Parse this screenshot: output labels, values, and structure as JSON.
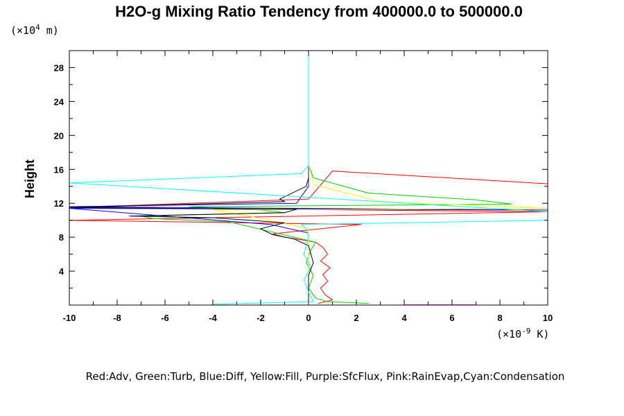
{
  "chart_data": {
    "type": "line",
    "title": "H2O-g Mixing Ratio Tendency from 400000.0 to 500000.0",
    "ylabel": "Height",
    "yunit_prefix": "(×10",
    "yunit_exp": "4",
    "yunit_suffix": " m)",
    "xunit_prefix": "(×10",
    "xunit_exp": "-9",
    "xunit_suffix": " K)",
    "legend_text": "Red:Adv, Green:Turb, Blue:Diff, Yellow:Fill, Purple:SfcFlux, Pink:RainEvap,Cyan:Condensation",
    "xlim": [
      -10,
      10
    ],
    "ylim": [
      0,
      30
    ],
    "xticks": [
      "-10",
      "-8",
      "-6",
      "-4",
      "-2",
      "0",
      "2",
      "4",
      "6",
      "8",
      "10"
    ],
    "yticks": [
      "4",
      "8",
      "12",
      "16",
      "20",
      "24",
      "28"
    ],
    "series": [
      {
        "color": "#ff0000",
        "points": [
          [
            0.4,
            0.2
          ],
          [
            1.0,
            0.6
          ],
          [
            0.7,
            1.2
          ],
          [
            0.5,
            2.0
          ],
          [
            0.8,
            2.8
          ],
          [
            0.6,
            3.6
          ],
          [
            0.9,
            4.4
          ],
          [
            0.5,
            5.2
          ],
          [
            0.8,
            6.0
          ],
          [
            0.6,
            6.8
          ],
          [
            0.3,
            7.4
          ],
          [
            -0.3,
            7.7
          ],
          [
            -1.0,
            8.0
          ],
          [
            -1.5,
            8.4
          ],
          [
            2.2,
            9.5
          ],
          [
            -10,
            10.0
          ],
          [
            10,
            11.0
          ],
          [
            -10,
            11.5
          ],
          [
            0,
            12.5
          ],
          [
            1.0,
            15.8
          ],
          [
            10,
            14.3
          ]
        ]
      },
      {
        "color": "#00cc00",
        "points": [
          [
            2.5,
            0.2
          ],
          [
            0.8,
            0.4
          ],
          [
            0.3,
            0.8
          ],
          [
            0.0,
            2.0
          ],
          [
            0.2,
            3.5
          ],
          [
            -0.1,
            5.0
          ],
          [
            0.1,
            6.5
          ],
          [
            0.3,
            7.4
          ],
          [
            -0.6,
            8.0
          ],
          [
            -1.8,
            8.8
          ],
          [
            -3.3,
            9.8
          ],
          [
            -6.5,
            10.2
          ],
          [
            -7.0,
            10.5
          ],
          [
            -1.0,
            10.9
          ],
          [
            -2.0,
            11.2
          ],
          [
            -5.0,
            11.6
          ],
          [
            8.5,
            11.9
          ],
          [
            7.0,
            12.4
          ],
          [
            2.5,
            13.2
          ],
          [
            0.2,
            15.0
          ],
          [
            0.0,
            16.5
          ]
        ]
      },
      {
        "color": "#0000ff",
        "points": [
          [
            0.0,
            0.1
          ],
          [
            0.0,
            1.0
          ],
          [
            0.0,
            5.0
          ],
          [
            0.0,
            8.5
          ],
          [
            -1.6,
            9.5
          ],
          [
            -10,
            11.4
          ],
          [
            10,
            11.2
          ],
          [
            -10,
            11.6
          ],
          [
            -0.5,
            12.0
          ],
          [
            0.0,
            14.0
          ],
          [
            0.0,
            16.5
          ]
        ]
      },
      {
        "color": "#ffff00",
        "points": [
          [
            0.0,
            0.1
          ],
          [
            0.0,
            5.0
          ],
          [
            0.0,
            9.0
          ],
          [
            -2.5,
            10.5
          ],
          [
            -4.0,
            11.2
          ],
          [
            10,
            11.4
          ],
          [
            3.0,
            12.2
          ],
          [
            0.2,
            14.2
          ],
          [
            0.0,
            16.5
          ]
        ]
      },
      {
        "color": "#000000",
        "points": [
          [
            0.0,
            0.2
          ],
          [
            0.0,
            3.5
          ],
          [
            0.2,
            5.0
          ],
          [
            0.0,
            7.0
          ],
          [
            -0.6,
            7.8
          ],
          [
            -1.5,
            8.3
          ],
          [
            -2.0,
            9.0
          ],
          [
            -1.0,
            9.7
          ],
          [
            -4.0,
            10.3
          ],
          [
            -7.5,
            10.5
          ],
          [
            -1.0,
            10.9
          ],
          [
            -0.5,
            11.3
          ],
          [
            -10,
            11.5
          ],
          [
            -1.0,
            12.2
          ],
          [
            -1.2,
            12.5
          ],
          [
            -0.1,
            14.0
          ],
          [
            0.0,
            15.0
          ]
        ]
      },
      {
        "color": "#00ffff",
        "points": [
          [
            -4.0,
            0.1
          ],
          [
            0.2,
            0.4
          ],
          [
            0.0,
            1.5
          ],
          [
            -0.2,
            3.0
          ],
          [
            0.1,
            4.5
          ],
          [
            -0.2,
            6.0
          ],
          [
            0.0,
            8.0
          ],
          [
            -0.1,
            9.0
          ],
          [
            -0.3,
            9.5
          ],
          [
            10,
            10.0
          ],
          [
            10,
            11.0
          ],
          [
            -10,
            14.4
          ],
          [
            -0.3,
            15.5
          ],
          [
            0.0,
            16.5
          ],
          [
            0.0,
            30.0
          ]
        ]
      },
      {
        "color": "#ff66ff",
        "points": [
          [
            4.0,
            0.05
          ],
          [
            7.0,
            0.05
          ]
        ]
      }
    ]
  }
}
